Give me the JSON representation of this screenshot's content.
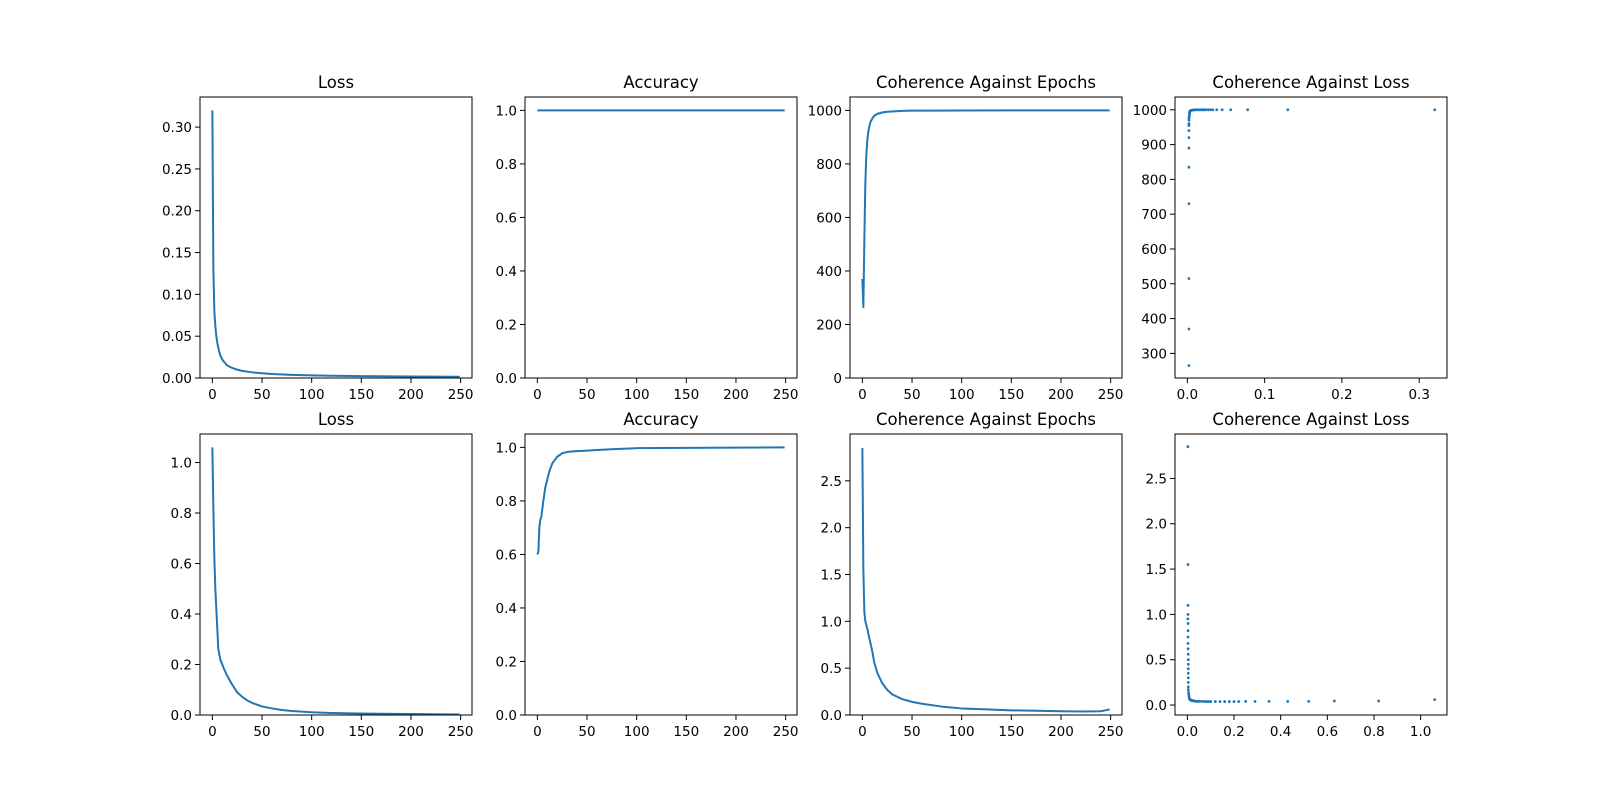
{
  "style": {
    "line_color": "#1f77b4",
    "axis_color": "#000000",
    "background": "#ffffff"
  },
  "chart_data": [
    {
      "type": "line",
      "title": "Loss",
      "xlabel": "",
      "ylabel": "",
      "xlim": [
        -12.45,
        261.45
      ],
      "ylim": [
        0,
        0.336
      ],
      "xticks": [
        0,
        50,
        100,
        150,
        200,
        250
      ],
      "yticks": [
        0.0,
        0.05,
        0.1,
        0.15,
        0.2,
        0.25,
        0.3
      ],
      "ytick_decimals": 2,
      "grid": false,
      "series": [
        {
          "x": [
            0,
            1,
            2,
            3,
            4,
            5,
            6,
            7,
            8,
            10,
            12,
            15,
            20,
            25,
            30,
            40,
            50,
            60,
            80,
            100,
            120,
            150,
            180,
            200,
            220,
            249
          ],
          "y": [
            0.32,
            0.13,
            0.08,
            0.062,
            0.05,
            0.042,
            0.036,
            0.031,
            0.027,
            0.022,
            0.019,
            0.015,
            0.012,
            0.01,
            0.0085,
            0.0068,
            0.0057,
            0.0048,
            0.0038,
            0.0031,
            0.0027,
            0.0023,
            0.002,
            0.0018,
            0.0017,
            0.0015
          ]
        }
      ]
    },
    {
      "type": "line",
      "title": "Accuracy",
      "xlabel": "",
      "ylabel": "",
      "xlim": [
        -12.45,
        261.45
      ],
      "ylim": [
        0,
        1.05
      ],
      "xticks": [
        0,
        50,
        100,
        150,
        200,
        250
      ],
      "yticks": [
        0.0,
        0.2,
        0.4,
        0.6,
        0.8,
        1.0
      ],
      "ytick_decimals": 1,
      "grid": false,
      "series": [
        {
          "x": [
            0,
            249
          ],
          "y": [
            1.0,
            1.0
          ]
        }
      ]
    },
    {
      "type": "line",
      "title": "Coherence Against Epochs",
      "xlabel": "",
      "ylabel": "",
      "xlim": [
        -12.45,
        261.45
      ],
      "ylim": [
        0,
        1050
      ],
      "xticks": [
        0,
        50,
        100,
        150,
        200,
        250
      ],
      "yticks": [
        0,
        200,
        400,
        600,
        800,
        1000
      ],
      "ytick_decimals": 0,
      "grid": false,
      "series": [
        {
          "x": [
            0,
            1,
            2,
            3,
            4,
            5,
            6,
            7,
            8,
            10,
            12,
            15,
            20,
            25,
            30,
            40,
            50,
            70,
            100,
            150,
            200,
            249
          ],
          "y": [
            370,
            265,
            515,
            730,
            835,
            890,
            920,
            940,
            955,
            970,
            980,
            987,
            992,
            995,
            996,
            998,
            999,
            999,
            999.5,
            1000,
            1000,
            1000
          ]
        }
      ]
    },
    {
      "type": "scatter",
      "title": "Coherence Against Loss",
      "xlabel": "",
      "ylabel": "",
      "xlim": [
        -0.016,
        0.336
      ],
      "ylim": [
        229.25,
        1036.75
      ],
      "xticks": [
        0.0,
        0.1,
        0.2,
        0.3
      ],
      "yticks": [
        300,
        400,
        500,
        600,
        700,
        800,
        900,
        1000
      ],
      "xtick_decimals": 1,
      "ytick_decimals": 0,
      "grid": false,
      "series": [
        {
          "x": [
            0.32,
            0.13,
            0.078,
            0.056,
            0.045,
            0.038,
            0.033,
            0.03,
            0.027,
            0.024,
            0.022,
            0.02,
            0.018,
            0.016,
            0.014,
            0.012,
            0.01,
            0.009,
            0.008,
            0.007,
            0.006,
            0.005,
            0.0045,
            0.004,
            0.0035,
            0.003,
            0.003,
            0.0028,
            0.0026,
            0.0024,
            0.0022,
            0.002,
            0.002,
            0.002,
            0.002,
            0.002,
            0.002,
            0.002,
            0.002,
            0.002,
            0.002,
            0.002
          ],
          "y": [
            1000,
            1000,
            1000,
            1000,
            1000,
            1000,
            1000,
            1000,
            1000,
            1000,
            1000,
            1000,
            1000,
            1000,
            1000,
            1000,
            1000,
            1000,
            999,
            999,
            999,
            998,
            998,
            997,
            996,
            995,
            993,
            990,
            985,
            980,
            970,
            955,
            940,
            920,
            890,
            835,
            730,
            515,
            370,
            265,
            975,
            960
          ]
        }
      ]
    },
    {
      "type": "line",
      "title": "Loss",
      "xlabel": "",
      "ylabel": "",
      "xlim": [
        -12.45,
        261.45
      ],
      "ylim": [
        0,
        1.113
      ],
      "xticks": [
        0,
        50,
        100,
        150,
        200,
        250
      ],
      "yticks": [
        0.0,
        0.2,
        0.4,
        0.6,
        0.8,
        1.0
      ],
      "ytick_decimals": 1,
      "grid": false,
      "series": [
        {
          "x": [
            0,
            1,
            2,
            3,
            4,
            5,
            6,
            8,
            10,
            12,
            15,
            20,
            25,
            30,
            35,
            40,
            50,
            60,
            70,
            80,
            100,
            120,
            150,
            200,
            249
          ],
          "y": [
            1.06,
            0.82,
            0.62,
            0.5,
            0.42,
            0.34,
            0.26,
            0.22,
            0.2,
            0.18,
            0.155,
            0.12,
            0.09,
            0.072,
            0.058,
            0.048,
            0.034,
            0.026,
            0.02,
            0.016,
            0.011,
            0.008,
            0.006,
            0.004,
            0.002
          ]
        }
      ]
    },
    {
      "type": "line",
      "title": "Accuracy",
      "xlabel": "",
      "ylabel": "",
      "xlim": [
        -12.45,
        261.45
      ],
      "ylim": [
        0,
        1.05
      ],
      "xticks": [
        0,
        50,
        100,
        150,
        200,
        250
      ],
      "yticks": [
        0.0,
        0.2,
        0.4,
        0.6,
        0.8,
        1.0
      ],
      "ytick_decimals": 1,
      "grid": false,
      "series": [
        {
          "x": [
            0,
            1,
            2,
            3,
            4,
            5,
            6,
            8,
            10,
            12,
            15,
            18,
            20,
            25,
            30,
            40,
            50,
            60,
            70,
            80,
            100,
            150,
            200,
            249
          ],
          "y": [
            0.6,
            0.61,
            0.7,
            0.73,
            0.74,
            0.77,
            0.8,
            0.85,
            0.88,
            0.91,
            0.94,
            0.955,
            0.965,
            0.978,
            0.983,
            0.986,
            0.988,
            0.99,
            0.992,
            0.994,
            0.997,
            0.998,
            0.999,
            1.0
          ]
        }
      ]
    },
    {
      "type": "line",
      "title": "Coherence Against Epochs",
      "xlabel": "",
      "ylabel": "",
      "xlim": [
        -12.45,
        261.45
      ],
      "ylim": [
        0,
        3.0
      ],
      "xticks": [
        0,
        50,
        100,
        150,
        200,
        250
      ],
      "yticks": [
        0.0,
        0.5,
        1.0,
        1.5,
        2.0,
        2.5
      ],
      "ytick_decimals": 1,
      "grid": false,
      "series": [
        {
          "x": [
            0,
            1,
            2,
            3,
            5,
            7,
            10,
            12,
            15,
            20,
            25,
            30,
            40,
            50,
            60,
            80,
            100,
            125,
            150,
            175,
            200,
            220,
            240,
            245,
            249
          ],
          "y": [
            2.85,
            1.55,
            1.1,
            1.0,
            0.92,
            0.82,
            0.68,
            0.56,
            0.45,
            0.34,
            0.27,
            0.22,
            0.17,
            0.14,
            0.12,
            0.09,
            0.07,
            0.06,
            0.05,
            0.045,
            0.04,
            0.038,
            0.04,
            0.05,
            0.06
          ]
        }
      ]
    },
    {
      "type": "scatter",
      "title": "Coherence Against Loss",
      "xlabel": "",
      "ylabel": "",
      "xlim": [
        -0.053,
        1.113
      ],
      "ylim": [
        -0.11,
        2.99
      ],
      "xticks": [
        0.0,
        0.2,
        0.4,
        0.6,
        0.8,
        1.0
      ],
      "yticks": [
        0.0,
        0.5,
        1.0,
        1.5,
        2.0,
        2.5
      ],
      "xtick_decimals": 1,
      "ytick_decimals": 1,
      "grid": false,
      "series": [
        {
          "x": [
            1.06,
            0.82,
            0.63,
            0.52,
            0.43,
            0.35,
            0.29,
            0.25,
            0.22,
            0.2,
            0.18,
            0.16,
            0.14,
            0.12,
            0.1,
            0.09,
            0.08,
            0.07,
            0.06,
            0.05,
            0.045,
            0.04,
            0.035,
            0.03,
            0.026,
            0.022,
            0.019,
            0.016,
            0.013,
            0.011,
            0.009,
            0.008,
            0.007,
            0.006,
            0.005,
            0.004,
            0.004,
            0.004,
            0.004,
            0.004,
            0.004,
            0.004,
            0.004,
            0.004,
            0.003,
            0.003,
            0.003,
            0.003,
            0.003,
            0.003,
            0.003,
            0.003,
            0.002,
            0.002
          ],
          "y": [
            0.06,
            0.045,
            0.045,
            0.04,
            0.04,
            0.04,
            0.04,
            0.04,
            0.038,
            0.038,
            0.038,
            0.038,
            0.038,
            0.038,
            0.038,
            0.038,
            0.038,
            0.04,
            0.04,
            0.04,
            0.04,
            0.04,
            0.042,
            0.045,
            0.045,
            0.05,
            0.05,
            0.05,
            0.06,
            0.06,
            0.07,
            0.08,
            0.1,
            0.12,
            0.14,
            0.17,
            0.2,
            0.25,
            0.3,
            0.35,
            0.4,
            0.45,
            0.5,
            0.56,
            0.62,
            0.68,
            0.75,
            0.82,
            0.9,
            1.0,
            1.1,
            1.55,
            2.85,
            0.95
          ]
        }
      ]
    }
  ]
}
